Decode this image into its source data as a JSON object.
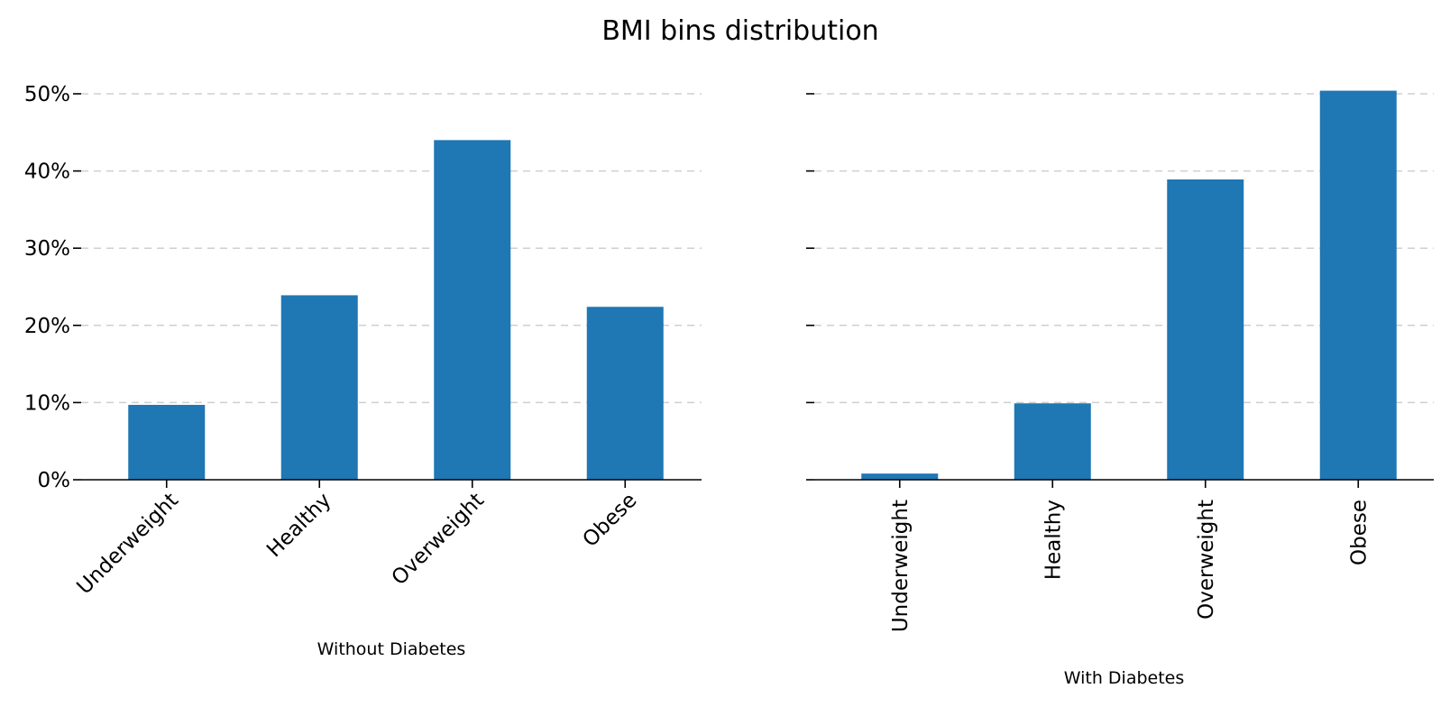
{
  "chart_data": {
    "title": "BMI bins distribution",
    "type": "bar",
    "ylim": [
      0,
      0.5
    ],
    "yticks": [
      "0%",
      "10%",
      "20%",
      "30%",
      "40%",
      "50%"
    ],
    "grid": "horizontal dashed",
    "color": "#1f77b4",
    "panels": [
      {
        "xlabel": "Without Diabetes",
        "categories": [
          "Underweight",
          "Healthy",
          "Overweight",
          "Obese"
        ],
        "values": [
          0.097,
          0.239,
          0.44,
          0.224
        ],
        "show_ytick_labels": true,
        "xtick_rotation": -45
      },
      {
        "xlabel": "With Diabetes",
        "categories": [
          "Underweight",
          "Healthy",
          "Overweight",
          "Obese"
        ],
        "values": [
          0.008,
          0.099,
          0.389,
          0.504
        ],
        "show_ytick_labels": false,
        "xtick_rotation": -90
      }
    ]
  }
}
